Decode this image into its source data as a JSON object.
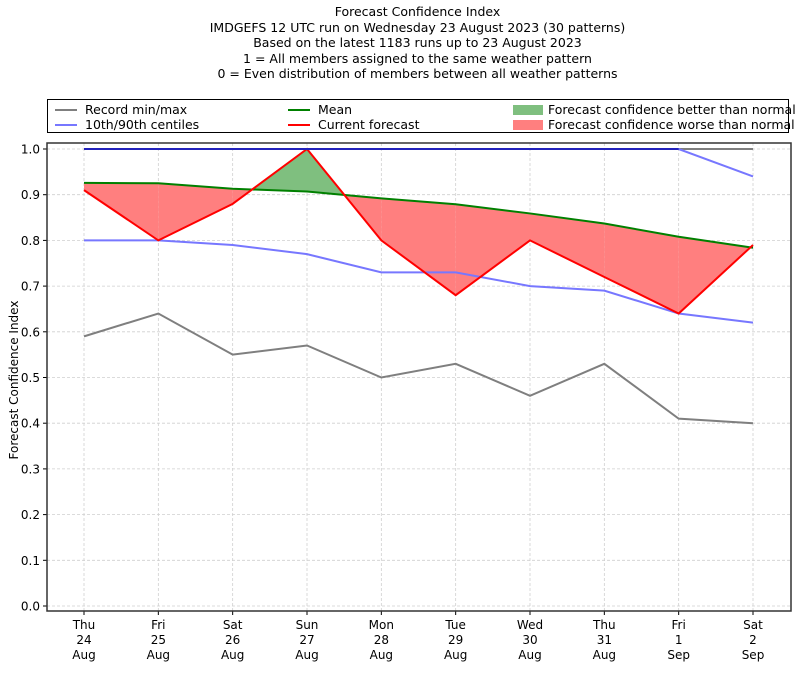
{
  "chart_data": {
    "type": "line",
    "title": "Forecast Confidence Index",
    "subtitle_lines": [
      "IMDGEFS 12 UTC run on Wednesday 23 August 2023 (30 patterns)",
      "Based on the latest 1183 runs up to 23 August 2023",
      "1 = All members assigned to the same weather pattern",
      "0 = Even distribution of members between all weather patterns"
    ],
    "xlabel": "",
    "ylabel": "Forecast Confidence Index",
    "ylim": [
      0.0,
      1.0
    ],
    "yticks": [
      "0.0",
      "0.1",
      "0.2",
      "0.3",
      "0.4",
      "0.5",
      "0.6",
      "0.7",
      "0.8",
      "0.9",
      "1.0"
    ],
    "grid": true,
    "legend_position": "top",
    "categories": [
      {
        "day": "Thu",
        "date": "24",
        "month": "Aug"
      },
      {
        "day": "Fri",
        "date": "25",
        "month": "Aug"
      },
      {
        "day": "Sat",
        "date": "26",
        "month": "Aug"
      },
      {
        "day": "Sun",
        "date": "27",
        "month": "Aug"
      },
      {
        "day": "Mon",
        "date": "28",
        "month": "Aug"
      },
      {
        "day": "Tue",
        "date": "29",
        "month": "Aug"
      },
      {
        "day": "Wed",
        "date": "30",
        "month": "Aug"
      },
      {
        "day": "Thu",
        "date": "31",
        "month": "Aug"
      },
      {
        "day": "Fri",
        "date": "1",
        "month": "Sep"
      },
      {
        "day": "Sat",
        "date": "2",
        "month": "Sep"
      }
    ],
    "series": [
      {
        "name": "Record max",
        "legend_group": "Record min/max",
        "color": "#7f7f7f",
        "values": [
          1.0,
          1.0,
          1.0,
          1.0,
          1.0,
          1.0,
          1.0,
          1.0,
          1.0,
          1.0
        ]
      },
      {
        "name": "Record min",
        "legend_group": "Record min/max",
        "color": "#7f7f7f",
        "values": [
          0.59,
          0.64,
          0.55,
          0.57,
          0.5,
          0.53,
          0.46,
          0.53,
          0.41,
          0.4
        ]
      },
      {
        "name": "90th centile",
        "legend_group": "10th/90th centiles",
        "color": "#7777ff",
        "values": [
          1.0,
          1.0,
          1.0,
          1.0,
          1.0,
          1.0,
          1.0,
          1.0,
          1.0,
          0.94
        ]
      },
      {
        "name": "10th centile",
        "legend_group": "10th/90th centiles",
        "color": "#7777ff",
        "values": [
          0.8,
          0.8,
          0.79,
          0.77,
          0.73,
          0.73,
          0.7,
          0.69,
          0.64,
          0.62
        ]
      },
      {
        "name": "Mean",
        "legend_group": "Mean",
        "color": "#008000",
        "values": [
          0.926,
          0.925,
          0.913,
          0.907,
          0.892,
          0.879,
          0.859,
          0.837,
          0.808,
          0.784
        ]
      },
      {
        "name": "Current forecast",
        "legend_group": "Current forecast",
        "color": "#ff0000",
        "values": [
          0.91,
          0.8,
          0.88,
          1.0,
          0.8,
          0.68,
          0.8,
          0.72,
          0.64,
          0.79
        ]
      }
    ],
    "fills": {
      "better": {
        "label": "Forecast confidence better than normal",
        "color": "#7fbf7f"
      },
      "worse": {
        "label": "Forecast confidence worse than normal",
        "color": "#ff7f7f"
      }
    },
    "legend": [
      {
        "label": "Record min/max",
        "kind": "line",
        "color": "#7f7f7f"
      },
      {
        "label": "10th/90th centiles",
        "kind": "line",
        "color": "#7777ff"
      },
      {
        "label": "Mean",
        "kind": "line",
        "color": "#008000"
      },
      {
        "label": "Current forecast",
        "kind": "line",
        "color": "#ff0000"
      },
      {
        "label": "Forecast confidence better than normal",
        "kind": "patch",
        "color": "#7fbf7f"
      },
      {
        "label": "Forecast confidence worse than normal",
        "kind": "patch",
        "color": "#ff7f7f"
      }
    ],
    "top_band_color": "#2222bb"
  }
}
